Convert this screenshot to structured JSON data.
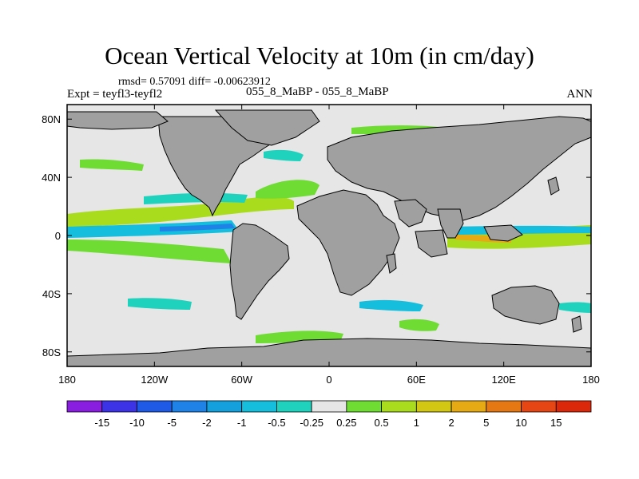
{
  "title": "Ocean Vertical Velocity at 10m (in cm/day)",
  "stats_line": "rmsd= 0.57091 diff= -0.00623912",
  "expt_label": "Expt = teyfl3-teyfl2",
  "cases_label": "055_8_MaBP - 055_8_MaBP",
  "season": "ANN",
  "chart_data": {
    "type": "contour_map",
    "title": "Ocean Vertical Velocity at 10m (in cm/day)",
    "units": "cm/day",
    "xlim": [
      -180,
      180
    ],
    "ylim": [
      -90,
      90
    ],
    "x_ticks": [
      {
        "value": -180,
        "label": "180"
      },
      {
        "value": -120,
        "label": "120W"
      },
      {
        "value": -60,
        "label": "60W"
      },
      {
        "value": 0,
        "label": "0"
      },
      {
        "value": 60,
        "label": "60E"
      },
      {
        "value": 120,
        "label": "120E"
      },
      {
        "value": 180,
        "label": "180"
      }
    ],
    "y_ticks": [
      {
        "value": 80,
        "label": "80N"
      },
      {
        "value": 40,
        "label": "40N"
      },
      {
        "value": 0,
        "label": "0"
      },
      {
        "value": -40,
        "label": "40S"
      },
      {
        "value": -80,
        "label": "80S"
      }
    ],
    "colorbar": {
      "labels": [
        "-15",
        "-10",
        "-5",
        "-2",
        "-1",
        "-0.5",
        "-0.25",
        "0.25",
        "0.5",
        "1",
        "2",
        "5",
        "10",
        "15"
      ],
      "colors": [
        "#8a1ee0",
        "#3c32e6",
        "#1e5ae6",
        "#1e82e6",
        "#14a0dc",
        "#14bedc",
        "#1ed2be",
        "#e6e6e6",
        "#6edc32",
        "#aadc1e",
        "#d2c814",
        "#e6aa14",
        "#e67814",
        "#e64614",
        "#dc280a"
      ]
    },
    "field_colors": {
      "land": "#a0a0a0",
      "near_zero": "#e6e6e6"
    }
  }
}
